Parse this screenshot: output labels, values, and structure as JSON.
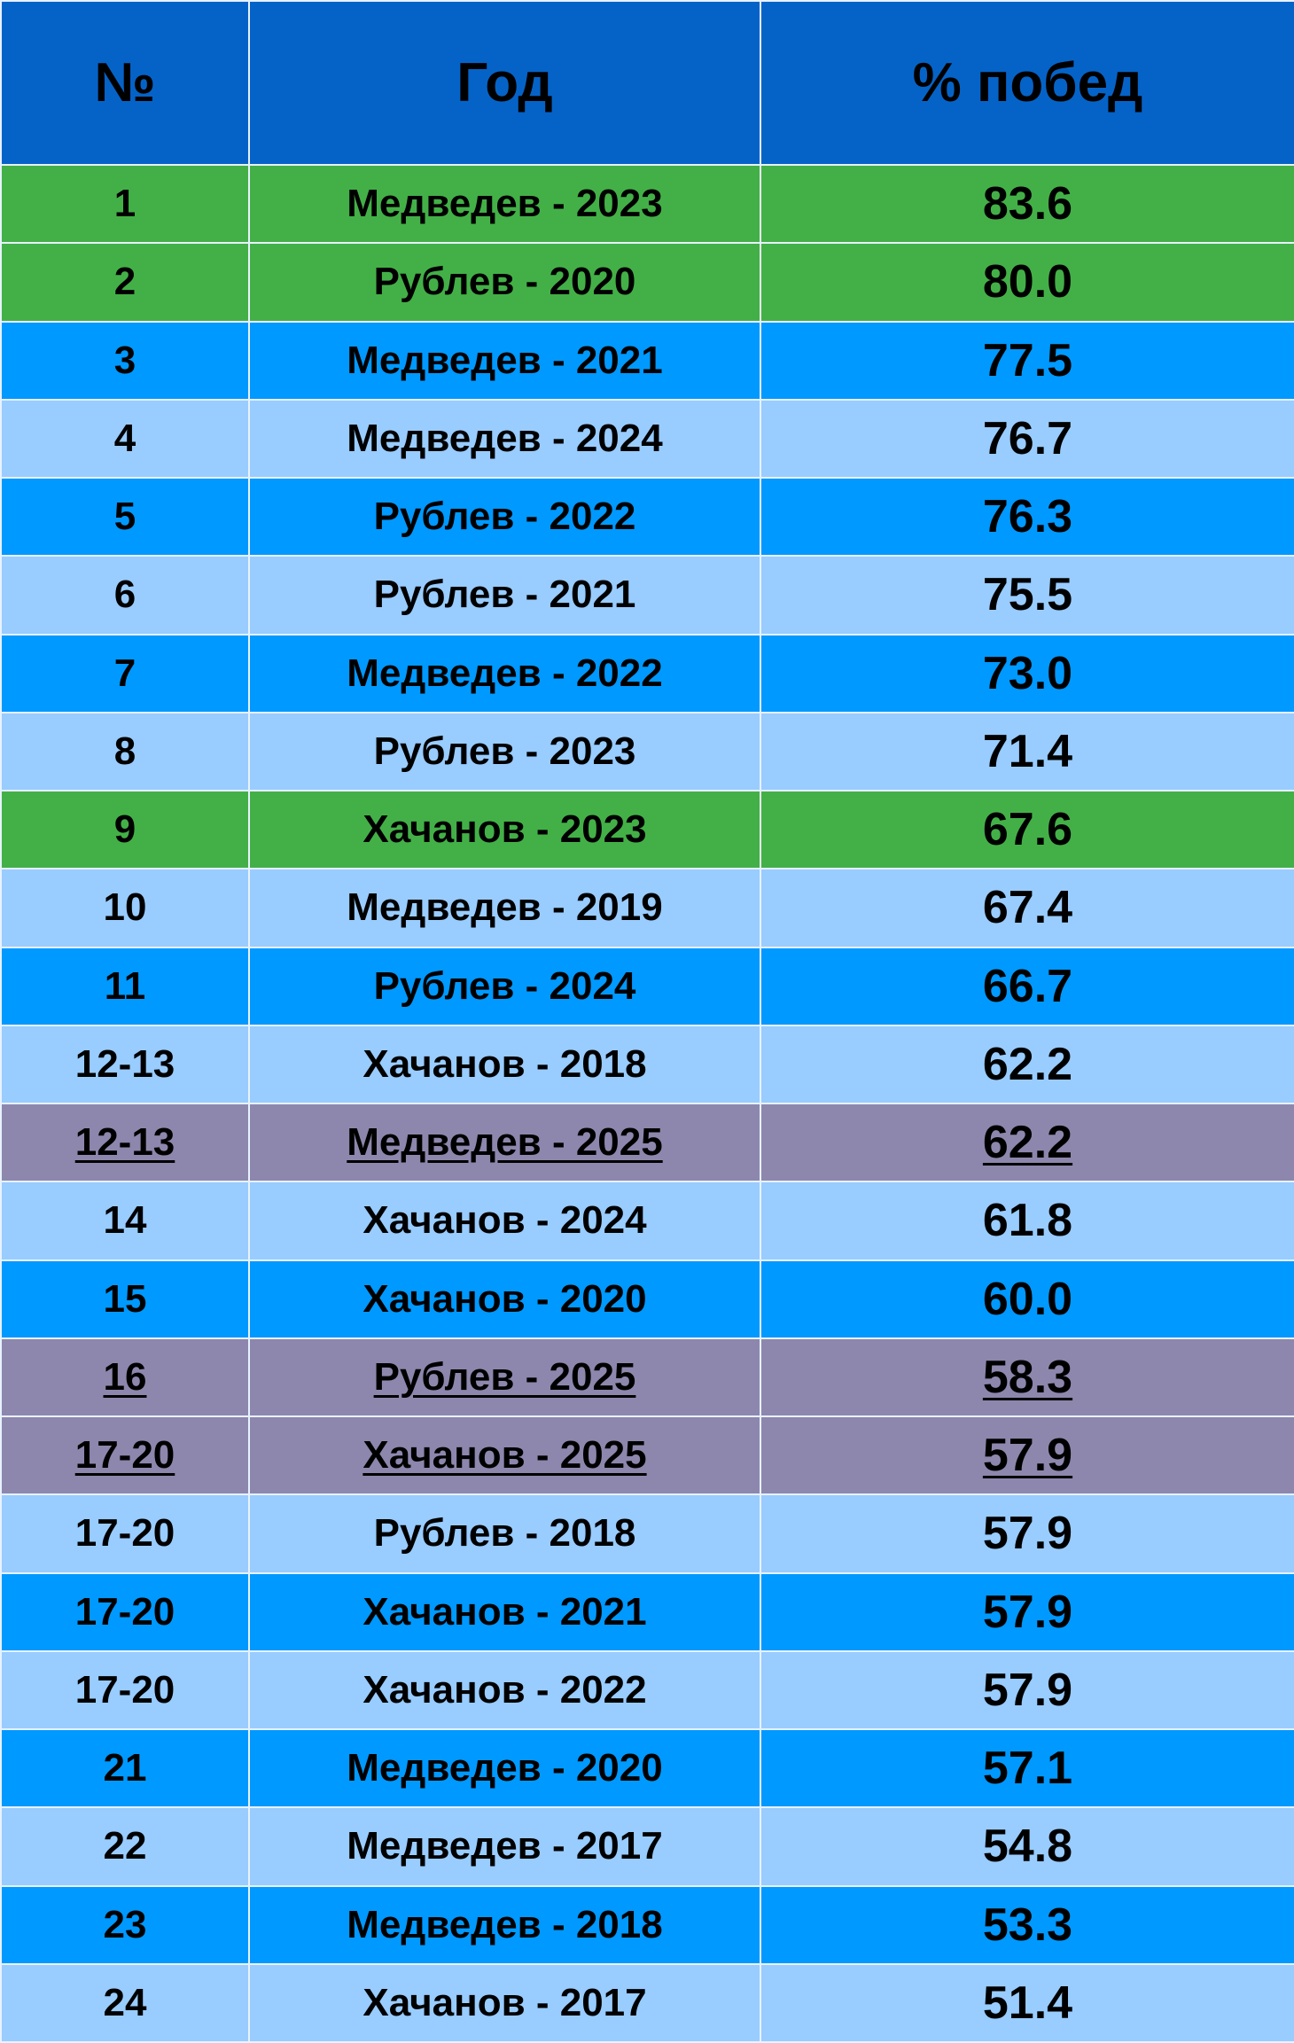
{
  "header": {
    "rank": "№",
    "year": "Год",
    "win_pct": "% побед"
  },
  "colors": {
    "header": "#0563c8",
    "green": "#43b047",
    "blue": "#0099ff",
    "light": "#99ccff",
    "purple": "#8d87ad"
  },
  "rows": [
    {
      "rank": "1",
      "name": "Медведев - 2023",
      "value": "83.6",
      "style": "green"
    },
    {
      "rank": "2",
      "name": "Рублев - 2020",
      "value": "80.0",
      "style": "green"
    },
    {
      "rank": "3",
      "name": "Медведев - 2021",
      "value": "77.5",
      "style": "blue"
    },
    {
      "rank": "4",
      "name": "Медведев - 2024",
      "value": "76.7",
      "style": "light"
    },
    {
      "rank": "5",
      "name": "Рублев - 2022",
      "value": "76.3",
      "style": "blue"
    },
    {
      "rank": "6",
      "name": "Рублев - 2021",
      "value": "75.5",
      "style": "light"
    },
    {
      "rank": "7",
      "name": "Медведев - 2022",
      "value": "73.0",
      "style": "blue"
    },
    {
      "rank": "8",
      "name": "Рублев - 2023",
      "value": "71.4",
      "style": "light"
    },
    {
      "rank": "9",
      "name": "Хачанов - 2023",
      "value": "67.6",
      "style": "green"
    },
    {
      "rank": "10",
      "name": "Медведев - 2019",
      "value": "67.4",
      "style": "light"
    },
    {
      "rank": "11",
      "name": "Рублев - 2024",
      "value": "66.7",
      "style": "blue"
    },
    {
      "rank": "12-13",
      "name": "Хачанов - 2018",
      "value": "62.2",
      "style": "light"
    },
    {
      "rank": "12-13",
      "name": "Медведев - 2025",
      "value": "62.2",
      "style": "purple"
    },
    {
      "rank": "14",
      "name": "Хачанов - 2024",
      "value": "61.8",
      "style": "light"
    },
    {
      "rank": "15",
      "name": "Хачанов - 2020",
      "value": "60.0",
      "style": "blue"
    },
    {
      "rank": "16",
      "name": "Рублев - 2025",
      "value": "58.3",
      "style": "purple"
    },
    {
      "rank": "17-20",
      "name": "Хачанов - 2025",
      "value": "57.9",
      "style": "purple"
    },
    {
      "rank": "17-20",
      "name": "Рублев - 2018",
      "value": "57.9",
      "style": "light"
    },
    {
      "rank": "17-20",
      "name": "Хачанов - 2021",
      "value": "57.9",
      "style": "blue"
    },
    {
      "rank": "17-20",
      "name": "Хачанов - 2022",
      "value": "57.9",
      "style": "light"
    },
    {
      "rank": "21",
      "name": "Медведев - 2020",
      "value": "57.1",
      "style": "blue"
    },
    {
      "rank": "22",
      "name": "Медведев - 2017",
      "value": "54.8",
      "style": "light"
    },
    {
      "rank": "23",
      "name": "Медведев - 2018",
      "value": "53.3",
      "style": "blue"
    },
    {
      "rank": "24",
      "name": "Хачанов - 2017",
      "value": "51.4",
      "style": "light"
    }
  ]
}
